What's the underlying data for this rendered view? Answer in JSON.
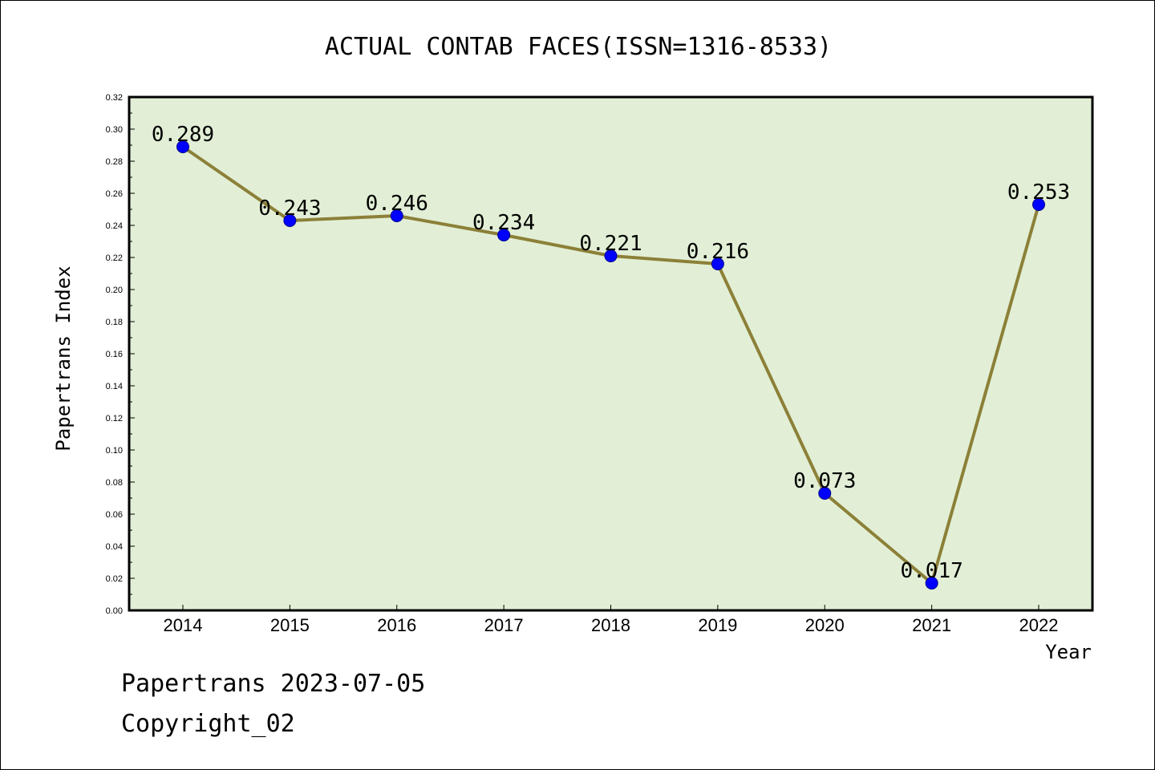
{
  "colors": {
    "plot_background": "#e2efd6",
    "line": "#8c8038",
    "marker_fill": "#0000ff",
    "marker_edge": "#00008b",
    "axis": "#000000"
  },
  "footer": {
    "date_line": "Papertrans 2023-07-05",
    "copyright_line": "Copyright_02"
  },
  "chart_data": {
    "type": "line",
    "title": "ACTUAL CONTAB FACES(ISSN=1316-8533)",
    "xlabel": "Year",
    "ylabel": "Papertrans Index",
    "categories": [
      "2014",
      "2015",
      "2016",
      "2017",
      "2018",
      "2019",
      "2020",
      "2021",
      "2022"
    ],
    "series": [
      {
        "values": [
          0.289,
          0.243,
          0.246,
          0.234,
          0.221,
          0.216,
          0.073,
          0.017,
          0.253
        ],
        "data_labels": [
          "0.289",
          "0.243",
          "0.246",
          "0.234",
          "0.221",
          "0.216",
          "0.073",
          "0.017",
          "0.253"
        ]
      }
    ],
    "ylim": [
      0,
      0.32
    ],
    "yticks": [
      "0.00",
      "0.02",
      "0.04",
      "0.06",
      "0.08",
      "0.10",
      "0.12",
      "0.14",
      "0.16",
      "0.18",
      "0.20",
      "0.22",
      "0.24",
      "0.26",
      "0.28",
      "0.30",
      "0.32"
    ],
    "grid": false,
    "legend": "none"
  }
}
